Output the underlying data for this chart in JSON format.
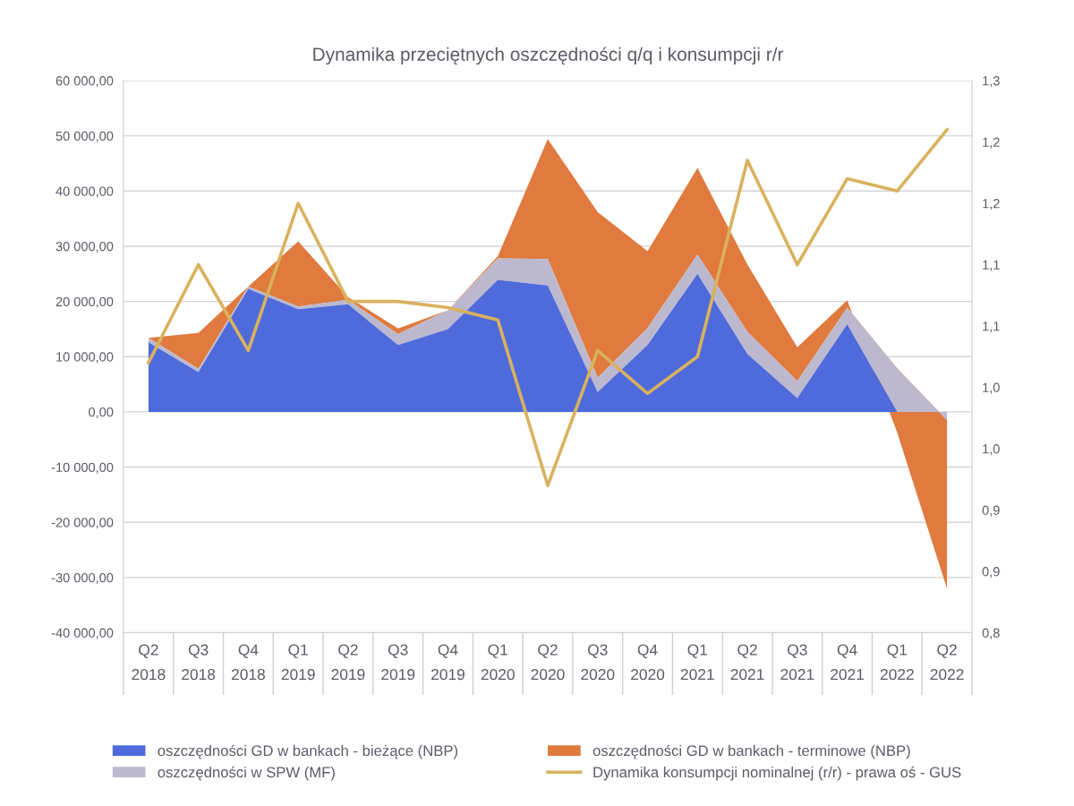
{
  "chart_data": {
    "type": "area",
    "title": "Dynamika przeciętnych oszczędności q/q i konsumpcji r/r",
    "categories": [
      "Q2\n2018",
      "Q3\n2018",
      "Q4\n2018",
      "Q1\n2019",
      "Q2\n2019",
      "Q3\n2019",
      "Q4\n2019",
      "Q1\n2020",
      "Q2\n2020",
      "Q3\n2020",
      "Q4\n2020",
      "Q1\n2021",
      "Q2\n2021",
      "Q3\n2021",
      "Q4\n2021",
      "Q1\n2022",
      "Q2\n2022"
    ],
    "stacked": true,
    "series": [
      {
        "name": "oszczędności GD w bankach - bieżące (NBP)",
        "color": "#4f6bdb",
        "values": [
          12600,
          7200,
          22300,
          18600,
          19500,
          12100,
          15000,
          23900,
          22900,
          3600,
          12100,
          25000,
          10500,
          2500,
          15900,
          0,
          0
        ]
      },
      {
        "name": "oszczędności w SPW (MF)",
        "color": "#bcb9cf",
        "values": [
          800,
          600,
          400,
          500,
          800,
          2000,
          3400,
          3900,
          4800,
          2600,
          3100,
          3500,
          4000,
          3100,
          3000,
          7900,
          -1500
        ]
      },
      {
        "name": "oszczędności GD w bankach - terminowe (NBP)",
        "color": "#e07a3e",
        "values": [
          0,
          6500,
          0,
          11800,
          500,
          1000,
          0,
          400,
          21700,
          30000,
          13900,
          15700,
          12200,
          6100,
          1300,
          -11600,
          -30500
        ]
      },
      {
        "name": "Dynamika konsumpcji nominalnej (r/r) - prawa oś - GUS",
        "type": "line",
        "axis": "y2",
        "color": "#d9b25f",
        "values": [
          1.02,
          1.1,
          1.03,
          1.15,
          1.07,
          1.07,
          1.065,
          1.055,
          0.92,
          1.03,
          0.995,
          1.025,
          1.185,
          1.1,
          1.17,
          1.16,
          1.21
        ]
      }
    ],
    "ylim": [
      -40000,
      60000
    ],
    "yticks": [
      {
        "value": -40000,
        "label": "-40 000,00"
      },
      {
        "value": -30000,
        "label": "-30 000,00"
      },
      {
        "value": -20000,
        "label": "-20 000,00"
      },
      {
        "value": -10000,
        "label": "-10 000,00"
      },
      {
        "value": 0,
        "label": "0,00"
      },
      {
        "value": 10000,
        "label": "10 000,00"
      },
      {
        "value": 20000,
        "label": "20 000,00"
      },
      {
        "value": 30000,
        "label": "30 000,00"
      },
      {
        "value": 40000,
        "label": "40 000,00"
      },
      {
        "value": 50000,
        "label": "50 000,00"
      },
      {
        "value": 60000,
        "label": "60 000,00"
      }
    ],
    "y2lim": [
      0.8,
      1.25
    ],
    "y2ticks": [
      {
        "value": 0.8,
        "label": "0,8"
      },
      {
        "value": 0.85,
        "label": "0,9"
      },
      {
        "value": 0.9,
        "label": "0,9"
      },
      {
        "value": 0.95,
        "label": "1,0"
      },
      {
        "value": 1.0,
        "label": "1,0"
      },
      {
        "value": 1.05,
        "label": "1,1"
      },
      {
        "value": 1.1,
        "label": "1,1"
      },
      {
        "value": 1.15,
        "label": "1,2"
      },
      {
        "value": 1.2,
        "label": "1,2"
      },
      {
        "value": 1.25,
        "label": "1,3"
      }
    ],
    "grid": "y",
    "legend": "bottom"
  }
}
